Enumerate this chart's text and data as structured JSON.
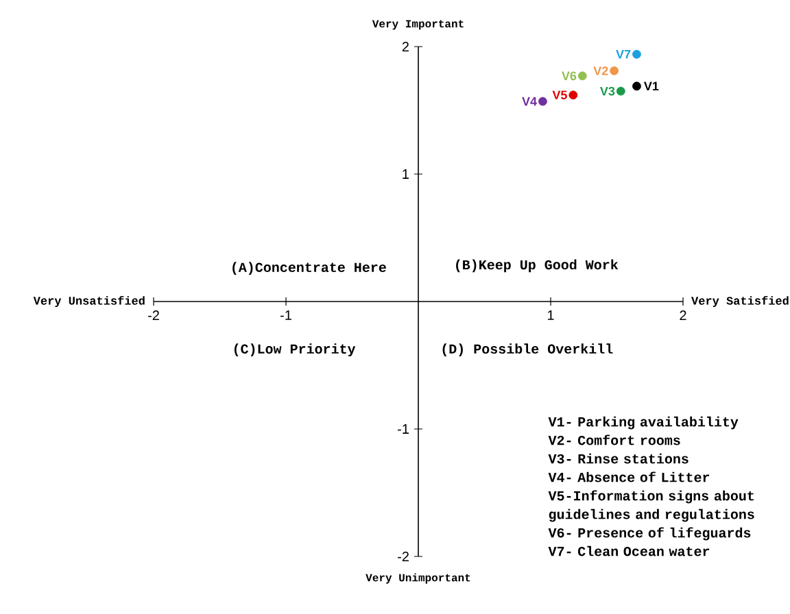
{
  "chart_data": {
    "type": "scatter",
    "xlim": [
      -2,
      2
    ],
    "ylim": [
      -2,
      2
    ],
    "xticks": [
      -2,
      -1,
      1,
      2
    ],
    "yticks": [
      -2,
      -1,
      1,
      2
    ],
    "grid": false,
    "legend": false,
    "marker": "circle",
    "series": [
      {
        "name": "V1",
        "color": "#000000",
        "x": [
          1.65
        ],
        "values": [
          1.69
        ]
      },
      {
        "name": "V2",
        "color": "#f0954a",
        "x": [
          1.48
        ],
        "values": [
          1.81
        ]
      },
      {
        "name": "V3",
        "color": "#1a9a4a",
        "x": [
          1.53
        ],
        "values": [
          1.65
        ]
      },
      {
        "name": "V4",
        "color": "#7030a0",
        "x": [
          0.94
        ],
        "values": [
          1.57
        ]
      },
      {
        "name": "V5",
        "color": "#e00000",
        "x": [
          1.17
        ],
        "values": [
          1.62
        ]
      },
      {
        "name": "V6",
        "color": "#92c050",
        "x": [
          1.24
        ],
        "values": [
          1.77
        ]
      },
      {
        "name": "V7",
        "color": "#1ea0e0",
        "x": [
          1.65
        ],
        "values": [
          1.94
        ]
      }
    ],
    "annotations": [
      "Very Important",
      "Very Unimportant",
      "Very Unsatisfied",
      "Very Satisfied",
      "(A)Concentrate Here",
      "(B)Keep Up Good Work",
      "(C)Low Priority",
      "(D) Possible Overkill",
      "V1- Parking availability",
      "V2- Comfort rooms",
      "V3- Rinse stations",
      "V4- Absence of Litter",
      "V5-Information signs about guidelines and regulations",
      "V6- Presence of lifeguards",
      "V7- Clean Ocean water"
    ]
  }
}
